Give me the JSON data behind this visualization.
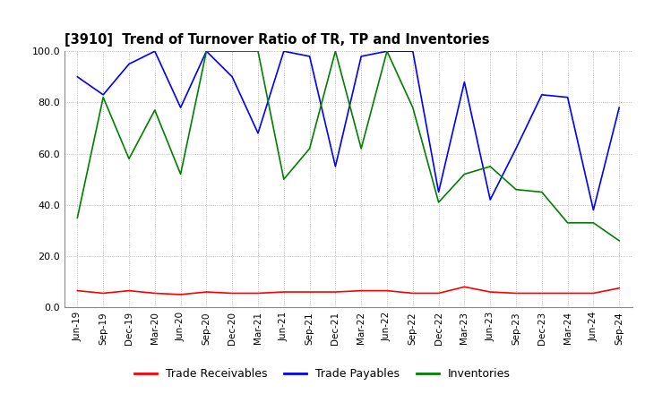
{
  "title": "[3910]  Trend of Turnover Ratio of TR, TP and Inventories",
  "x_labels": [
    "Jun-19",
    "Sep-19",
    "Dec-19",
    "Mar-20",
    "Jun-20",
    "Sep-20",
    "Dec-20",
    "Mar-21",
    "Jun-21",
    "Sep-21",
    "Dec-21",
    "Mar-22",
    "Jun-22",
    "Sep-22",
    "Dec-22",
    "Mar-23",
    "Jun-23",
    "Sep-23",
    "Dec-23",
    "Mar-24",
    "Jun-24",
    "Sep-24"
  ],
  "trade_receivables": [
    6.5,
    5.5,
    6.5,
    5.5,
    5.0,
    6.0,
    5.5,
    5.5,
    6.0,
    6.0,
    6.0,
    6.5,
    6.5,
    5.5,
    5.5,
    8.0,
    6.0,
    5.5,
    5.5,
    5.5,
    5.5,
    7.5
  ],
  "trade_payables": [
    90.0,
    83.0,
    95.0,
    100.0,
    78.0,
    100.0,
    90.0,
    68.0,
    100.0,
    98.0,
    55.0,
    98.0,
    100.0,
    100.0,
    45.0,
    88.0,
    42.0,
    62.0,
    83.0,
    82.0,
    38.0,
    78.0
  ],
  "inventories": [
    35.0,
    82.0,
    58.0,
    77.0,
    52.0,
    100.0,
    100.0,
    100.0,
    50.0,
    62.0,
    100.0,
    62.0,
    100.0,
    78.0,
    41.0,
    52.0,
    55.0,
    46.0,
    45.0,
    33.0,
    33.0,
    26.0
  ],
  "ylim": [
    0.0,
    100.0
  ],
  "yticks": [
    0.0,
    20.0,
    40.0,
    60.0,
    80.0,
    100.0
  ],
  "color_tr": "#ff0000",
  "color_tp": "#0000ff",
  "color_inv": "#008000",
  "legend_labels": [
    "Trade Receivables",
    "Trade Payables",
    "Inventories"
  ],
  "bg_color": "#ffffff"
}
